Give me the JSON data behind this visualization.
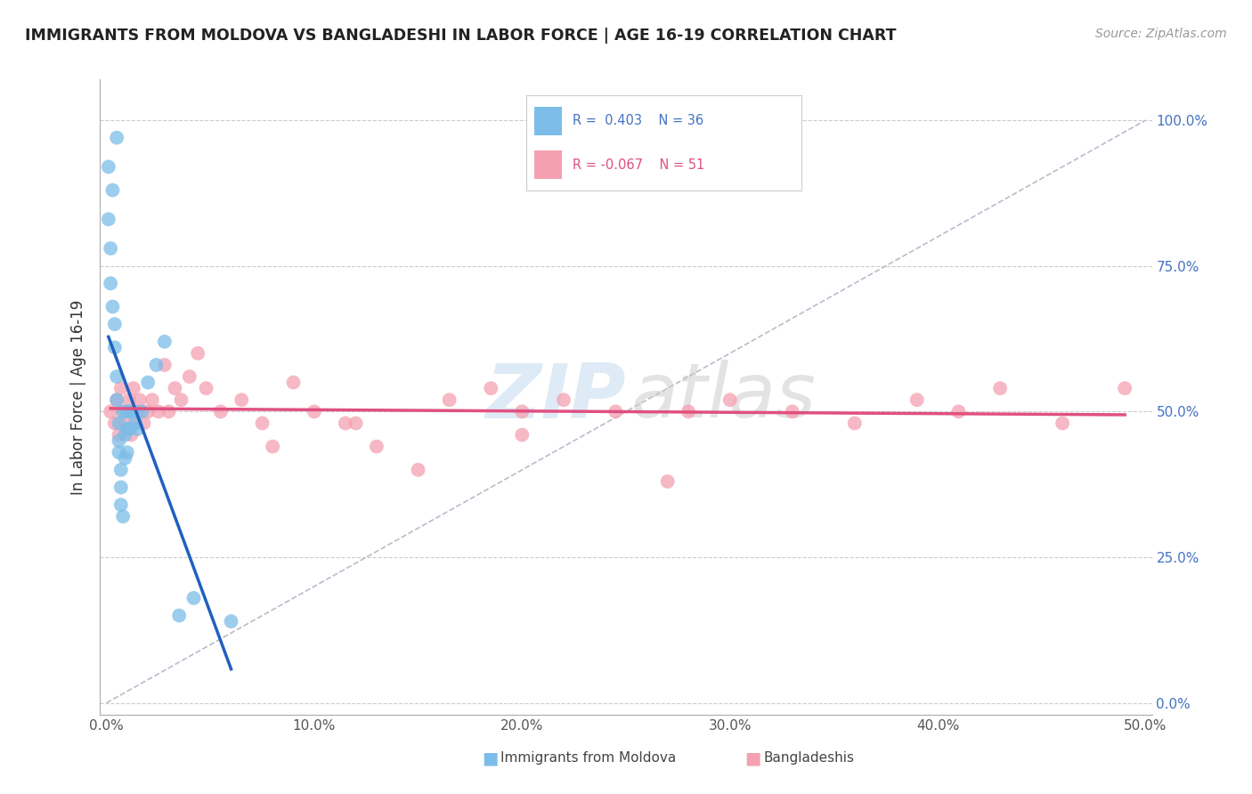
{
  "title": "IMMIGRANTS FROM MOLDOVA VS BANGLADESHI IN LABOR FORCE | AGE 16-19 CORRELATION CHART",
  "source": "Source: ZipAtlas.com",
  "ylabel": "In Labor Force | Age 16-19",
  "xlim": [
    -0.003,
    0.503
  ],
  "ylim": [
    -0.02,
    1.07
  ],
  "xticks": [
    0.0,
    0.1,
    0.2,
    0.3,
    0.4,
    0.5
  ],
  "xticklabels": [
    "0.0%",
    "10.0%",
    "20.0%",
    "30.0%",
    "40.0%",
    "50.0%"
  ],
  "yticks": [
    0.0,
    0.25,
    0.5,
    0.75,
    1.0
  ],
  "yticklabels": [
    "0.0%",
    "25.0%",
    "50.0%",
    "75.0%",
    "100.0%"
  ],
  "moldova_color": "#7bbde8",
  "bangladesh_color": "#f4a0b0",
  "moldova_line_color": "#2060c0",
  "bangladesh_line_color": "#e05080",
  "ref_line_color": "#bbbbcc",
  "moldova_x": [
    0.001,
    0.001,
    0.002,
    0.002,
    0.003,
    0.003,
    0.004,
    0.004,
    0.005,
    0.005,
    0.005,
    0.006,
    0.006,
    0.006,
    0.007,
    0.007,
    0.007,
    0.008,
    0.008,
    0.009,
    0.009,
    0.01,
    0.01,
    0.01,
    0.011,
    0.011,
    0.013,
    0.014,
    0.015,
    0.017,
    0.02,
    0.024,
    0.028,
    0.035,
    0.042,
    0.06
  ],
  "moldova_y": [
    0.92,
    0.83,
    0.78,
    0.72,
    0.88,
    0.68,
    0.65,
    0.61,
    0.97,
    0.56,
    0.52,
    0.48,
    0.45,
    0.43,
    0.4,
    0.37,
    0.34,
    0.32,
    0.5,
    0.46,
    0.42,
    0.5,
    0.47,
    0.43,
    0.5,
    0.47,
    0.5,
    0.48,
    0.47,
    0.5,
    0.55,
    0.58,
    0.62,
    0.15,
    0.18,
    0.14
  ],
  "bangladesh_x": [
    0.002,
    0.004,
    0.005,
    0.006,
    0.007,
    0.008,
    0.009,
    0.01,
    0.011,
    0.012,
    0.013,
    0.014,
    0.015,
    0.016,
    0.018,
    0.02,
    0.022,
    0.025,
    0.028,
    0.03,
    0.033,
    0.036,
    0.04,
    0.044,
    0.048,
    0.055,
    0.065,
    0.075,
    0.09,
    0.1,
    0.115,
    0.13,
    0.15,
    0.165,
    0.185,
    0.2,
    0.22,
    0.245,
    0.27,
    0.3,
    0.33,
    0.36,
    0.39,
    0.41,
    0.43,
    0.46,
    0.49,
    0.2,
    0.08,
    0.12,
    0.28
  ],
  "bangladesh_y": [
    0.5,
    0.48,
    0.52,
    0.46,
    0.54,
    0.5,
    0.48,
    0.5,
    0.52,
    0.46,
    0.54,
    0.48,
    0.5,
    0.52,
    0.48,
    0.5,
    0.52,
    0.5,
    0.58,
    0.5,
    0.54,
    0.52,
    0.56,
    0.6,
    0.54,
    0.5,
    0.52,
    0.48,
    0.55,
    0.5,
    0.48,
    0.44,
    0.4,
    0.52,
    0.54,
    0.5,
    0.52,
    0.5,
    0.38,
    0.52,
    0.5,
    0.48,
    0.52,
    0.5,
    0.54,
    0.48,
    0.54,
    0.46,
    0.44,
    0.48,
    0.5
  ],
  "ref_line_x": [
    0.0,
    0.5
  ],
  "ref_line_y": [
    0.0,
    1.0
  ],
  "watermark_zip": "ZIP",
  "watermark_atlas": "atlas"
}
